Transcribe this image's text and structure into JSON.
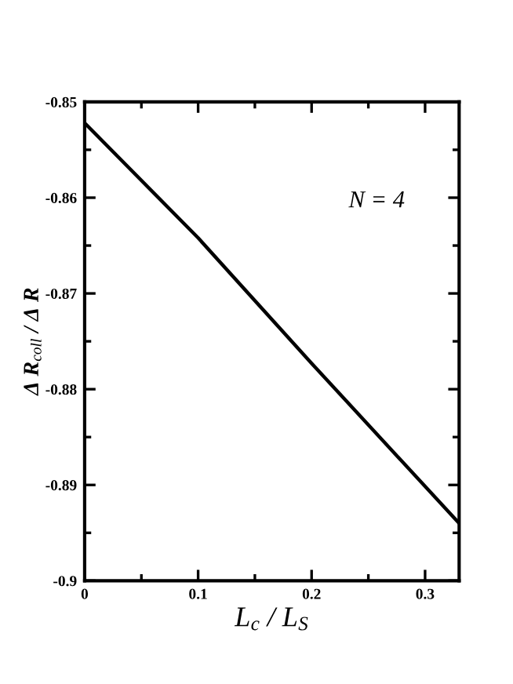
{
  "chart_data": {
    "type": "line",
    "x": [
      0,
      0.1,
      0.2,
      0.33
    ],
    "series": [
      {
        "color": "#000000",
        "values": [
          -0.8522,
          -0.8642,
          -0.8773,
          -0.894
        ]
      }
    ],
    "xlabel": "L$_{c}$ / L$_{S}$",
    "ylabel": "Δ R$_{coll}$ / Δ R",
    "annotations": [
      "N = 4"
    ],
    "xlim": [
      0,
      0.33
    ],
    "xticks": [
      0,
      0.1,
      0.2,
      0.3
    ],
    "ylim": [
      -0.9,
      -0.85
    ],
    "yticks": [
      -0.9,
      -0.89,
      -0.88,
      -0.87,
      -0.86,
      -0.85
    ],
    "grid": false,
    "legend": false,
    "marker": "none",
    "line_style": "solid"
  }
}
